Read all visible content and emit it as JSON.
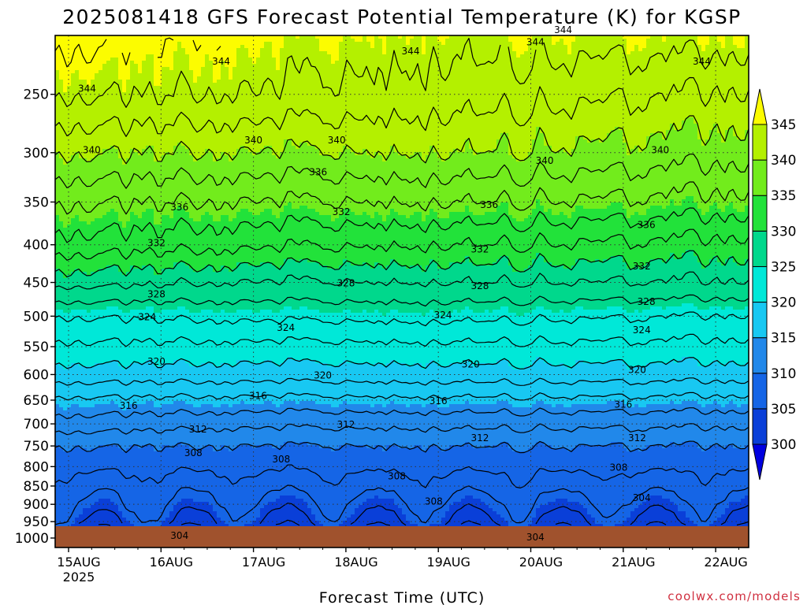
{
  "chart_data": {
    "type": "contour",
    "title": "2025081418 GFS Forecast Potential Temperature (K) for KGSP",
    "xlabel": "Forecast Time (UTC)",
    "ylabel": "",
    "credit": "coolwx.com/models",
    "x_ticks": [
      "15AUG",
      "16AUG",
      "17AUG",
      "18AUG",
      "19AUG",
      "20AUG",
      "21AUG",
      "22AUG"
    ],
    "x_year_label": "2025",
    "y_axis": {
      "scale": "log",
      "inverted": true,
      "ylim": [
        1000,
        200
      ],
      "ticks": [
        250,
        300,
        350,
        400,
        450,
        500,
        550,
        600,
        650,
        700,
        750,
        800,
        850,
        900,
        950,
        1000
      ]
    },
    "colorbar": {
      "levels": [
        300,
        305,
        310,
        315,
        320,
        325,
        330,
        335,
        340,
        345
      ],
      "colors": [
        "#0000e0",
        "#0a3fd8",
        "#1565e6",
        "#2188ea",
        "#18c8f2",
        "#00e8d8",
        "#00d88c",
        "#22e23a",
        "#72ec1c",
        "#b4f000",
        "#fcfc00"
      ]
    },
    "ground_color": "#a0522d",
    "contour_interval": 2,
    "profiles": [
      {
        "day": 0,
        "theta": [
          [
            1000,
            302
          ],
          [
            975,
            303
          ],
          [
            950,
            304.5
          ],
          [
            900,
            306
          ],
          [
            850,
            307
          ],
          [
            800,
            308.5
          ],
          [
            750,
            310
          ],
          [
            700,
            313
          ],
          [
            650,
            315.5
          ],
          [
            600,
            319
          ],
          [
            550,
            321.5
          ],
          [
            500,
            324
          ],
          [
            450,
            328.5
          ],
          [
            400,
            333
          ],
          [
            350,
            336
          ],
          [
            300,
            340
          ],
          [
            250,
            344
          ],
          [
            200,
            347
          ]
        ]
      },
      {
        "day": 2,
        "theta": [
          [
            1000,
            301
          ],
          [
            975,
            302.5
          ],
          [
            950,
            304
          ],
          [
            900,
            305.5
          ],
          [
            850,
            307
          ],
          [
            800,
            308.5
          ],
          [
            750,
            310
          ],
          [
            700,
            312.5
          ],
          [
            650,
            315.5
          ],
          [
            600,
            319
          ],
          [
            550,
            321.5
          ],
          [
            500,
            324.5
          ],
          [
            450,
            328
          ],
          [
            400,
            332.5
          ],
          [
            350,
            336
          ],
          [
            300,
            340
          ],
          [
            250,
            344
          ],
          [
            200,
            346
          ]
        ]
      },
      {
        "day": 4,
        "theta": [
          [
            1000,
            301
          ],
          [
            975,
            302.5
          ],
          [
            950,
            304
          ],
          [
            900,
            305.5
          ],
          [
            850,
            307
          ],
          [
            800,
            308.5
          ],
          [
            750,
            310
          ],
          [
            700,
            312.5
          ],
          [
            650,
            315.5
          ],
          [
            600,
            319
          ],
          [
            550,
            321.5
          ],
          [
            500,
            324.5
          ],
          [
            450,
            328
          ],
          [
            400,
            332
          ],
          [
            350,
            336
          ],
          [
            300,
            340
          ],
          [
            250,
            343
          ],
          [
            200,
            345
          ]
        ]
      },
      {
        "day": 7,
        "theta": [
          [
            1000,
            301
          ],
          [
            975,
            302.5
          ],
          [
            950,
            304
          ],
          [
            900,
            305.5
          ],
          [
            850,
            307
          ],
          [
            800,
            308.5
          ],
          [
            750,
            310
          ],
          [
            700,
            312.5
          ],
          [
            650,
            315.5
          ],
          [
            600,
            319
          ],
          [
            550,
            321.5
          ],
          [
            500,
            324
          ],
          [
            450,
            328
          ],
          [
            400,
            331.5
          ],
          [
            350,
            335.5
          ],
          [
            300,
            339
          ],
          [
            250,
            342
          ],
          [
            200,
            346
          ]
        ]
      }
    ],
    "contour_labels": [
      {
        "text": "344",
        "x": 0.2,
        "p": 245
      },
      {
        "text": "344",
        "x": 1.65,
        "p": 225
      },
      {
        "text": "344",
        "x": 3.7,
        "p": 218
      },
      {
        "text": "344",
        "x": 5.05,
        "p": 212
      },
      {
        "text": "344",
        "x": 5.35,
        "p": 204
      },
      {
        "text": "344",
        "x": 6.85,
        "p": 225
      },
      {
        "text": "340",
        "x": 0.25,
        "p": 297
      },
      {
        "text": "340",
        "x": 2.0,
        "p": 288
      },
      {
        "text": "340",
        "x": 2.9,
        "p": 288
      },
      {
        "text": "340",
        "x": 5.15,
        "p": 307
      },
      {
        "text": "340",
        "x": 6.4,
        "p": 297
      },
      {
        "text": "336",
        "x": 1.2,
        "p": 355
      },
      {
        "text": "336",
        "x": 2.7,
        "p": 318
      },
      {
        "text": "336",
        "x": 4.55,
        "p": 352
      },
      {
        "text": "336",
        "x": 6.25,
        "p": 375
      },
      {
        "text": "332",
        "x": 0.95,
        "p": 397
      },
      {
        "text": "332",
        "x": 2.95,
        "p": 360
      },
      {
        "text": "332",
        "x": 4.45,
        "p": 405
      },
      {
        "text": "332",
        "x": 6.2,
        "p": 427
      },
      {
        "text": "328",
        "x": 0.95,
        "p": 466
      },
      {
        "text": "328",
        "x": 3.0,
        "p": 450
      },
      {
        "text": "328",
        "x": 4.45,
        "p": 454
      },
      {
        "text": "328",
        "x": 6.25,
        "p": 477
      },
      {
        "text": "324",
        "x": 0.85,
        "p": 500
      },
      {
        "text": "324",
        "x": 2.35,
        "p": 517
      },
      {
        "text": "324",
        "x": 4.05,
        "p": 497
      },
      {
        "text": "324",
        "x": 6.2,
        "p": 521
      },
      {
        "text": "320",
        "x": 0.95,
        "p": 575
      },
      {
        "text": "320",
        "x": 2.75,
        "p": 600
      },
      {
        "text": "320",
        "x": 4.35,
        "p": 580
      },
      {
        "text": "320",
        "x": 6.15,
        "p": 590
      },
      {
        "text": "316",
        "x": 0.65,
        "p": 660
      },
      {
        "text": "316",
        "x": 2.05,
        "p": 640
      },
      {
        "text": "316",
        "x": 4.0,
        "p": 650
      },
      {
        "text": "316",
        "x": 6.0,
        "p": 657
      },
      {
        "text": "312",
        "x": 1.4,
        "p": 710
      },
      {
        "text": "312",
        "x": 3.0,
        "p": 700
      },
      {
        "text": "312",
        "x": 4.45,
        "p": 730
      },
      {
        "text": "312",
        "x": 6.15,
        "p": 730
      },
      {
        "text": "308",
        "x": 1.35,
        "p": 765
      },
      {
        "text": "308",
        "x": 2.3,
        "p": 780
      },
      {
        "text": "308",
        "x": 3.55,
        "p": 822
      },
      {
        "text": "308",
        "x": 3.95,
        "p": 890
      },
      {
        "text": "308",
        "x": 5.95,
        "p": 800
      },
      {
        "text": "304",
        "x": 1.2,
        "p": 990
      },
      {
        "text": "304",
        "x": 5.05,
        "p": 995
      },
      {
        "text": "304",
        "x": 6.2,
        "p": 880
      }
    ]
  }
}
